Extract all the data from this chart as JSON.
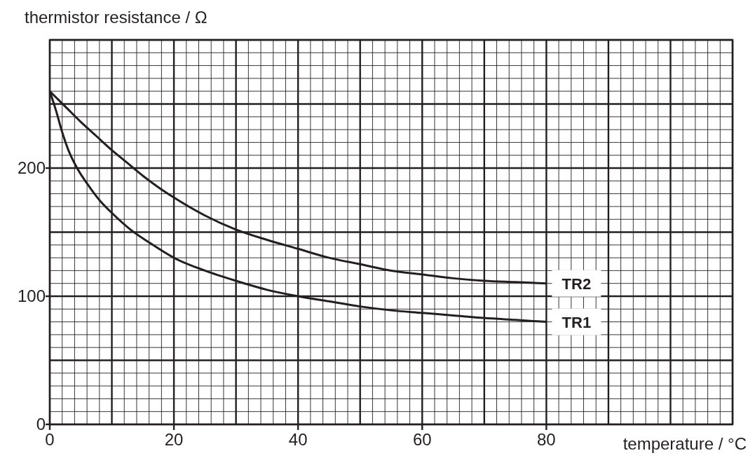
{
  "chart_data": {
    "type": "line",
    "xlabel": "temperature / °C",
    "ylabel": "thermistor resistance / Ω",
    "xlim": [
      0,
      110
    ],
    "ylim": [
      0,
      300
    ],
    "xticks": [
      0,
      20,
      40,
      60,
      80
    ],
    "yticks": [
      0,
      100,
      200
    ],
    "grid": true,
    "line_style": "solid",
    "series": [
      {
        "name": "TR1",
        "color": "#231f20",
        "x": [
          0,
          1,
          2,
          3,
          4.4,
          6,
          8,
          10,
          13,
          16,
          20,
          25,
          30,
          35,
          40,
          45,
          50,
          55,
          60,
          65,
          70,
          75,
          80
        ],
        "values": [
          260,
          245,
          228,
          214,
          200,
          188,
          175,
          165,
          152,
          142,
          130,
          120,
          112,
          105,
          100,
          96,
          92,
          89,
          87,
          85,
          83,
          81.5,
          80
        ]
      },
      {
        "name": "TR2",
        "color": "#231f20",
        "x": [
          0,
          2.5,
          5,
          7.5,
          10,
          12.5,
          15,
          17.5,
          20,
          25,
          30,
          35,
          40,
          45,
          50,
          55,
          60,
          65,
          70,
          75,
          80
        ],
        "values": [
          260,
          248,
          236,
          225,
          214,
          204,
          194,
          185,
          177,
          163,
          152,
          144,
          137,
          130,
          125,
          120,
          117,
          114,
          112,
          111,
          110
        ]
      }
    ]
  }
}
